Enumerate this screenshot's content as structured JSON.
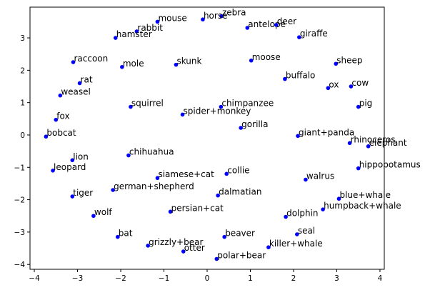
{
  "chart_data": {
    "type": "scatter",
    "title": "",
    "xlabel": "",
    "ylabel": "",
    "xlim": [
      -4.1,
      4.1
    ],
    "ylim": [
      -4.15,
      3.95
    ],
    "xticks": [
      -4,
      -3,
      -2,
      -1,
      0,
      1,
      2,
      3,
      4
    ],
    "yticks": [
      -4,
      -3,
      -2,
      -1,
      0,
      1,
      2,
      3
    ],
    "grid": false,
    "marker_color": "#0000ff",
    "points": [
      {
        "label": "zebra",
        "x": 0.33,
        "y": 3.67
      },
      {
        "label": "horse",
        "x": -0.1,
        "y": 3.57
      },
      {
        "label": "mouse",
        "x": -1.15,
        "y": 3.5
      },
      {
        "label": "rabbit",
        "x": -1.63,
        "y": 3.2
      },
      {
        "label": "hamster",
        "x": -2.12,
        "y": 3.0
      },
      {
        "label": "antelope",
        "x": 0.93,
        "y": 3.31
      },
      {
        "label": "deer",
        "x": 1.6,
        "y": 3.4
      },
      {
        "label": "giraffe",
        "x": 2.13,
        "y": 3.02
      },
      {
        "label": "raccoon",
        "x": -3.1,
        "y": 2.25
      },
      {
        "label": "mole",
        "x": -1.97,
        "y": 2.1
      },
      {
        "label": "skunk",
        "x": -0.72,
        "y": 2.17
      },
      {
        "label": "moose",
        "x": 1.02,
        "y": 2.3
      },
      {
        "label": "sheep",
        "x": 2.98,
        "y": 2.2
      },
      {
        "label": "rat",
        "x": -2.95,
        "y": 1.6
      },
      {
        "label": "buffalo",
        "x": 1.8,
        "y": 1.73
      },
      {
        "label": "ox",
        "x": 2.8,
        "y": 1.45
      },
      {
        "label": "cow",
        "x": 3.33,
        "y": 1.5
      },
      {
        "label": "weasel",
        "x": -3.4,
        "y": 1.22
      },
      {
        "label": "squirrel",
        "x": -1.77,
        "y": 0.87
      },
      {
        "label": "chimpanzee",
        "x": 0.32,
        "y": 0.87
      },
      {
        "label": "spider+monkey",
        "x": -0.57,
        "y": 0.63
      },
      {
        "label": "pig",
        "x": 3.5,
        "y": 0.87
      },
      {
        "label": "fox",
        "x": -3.5,
        "y": 0.47
      },
      {
        "label": "gorilla",
        "x": 0.78,
        "y": 0.22
      },
      {
        "label": "bobcat",
        "x": -3.73,
        "y": -0.05
      },
      {
        "label": "giant+panda",
        "x": 2.1,
        "y": -0.03
      },
      {
        "label": "rhinoceros",
        "x": 3.3,
        "y": -0.25
      },
      {
        "label": "elephant",
        "x": 3.73,
        "y": -0.35
      },
      {
        "label": "lion",
        "x": -3.12,
        "y": -0.78
      },
      {
        "label": "chihuahua",
        "x": -1.82,
        "y": -0.63
      },
      {
        "label": "hippopotamus",
        "x": 3.5,
        "y": -1.03
      },
      {
        "label": "leopard",
        "x": -3.57,
        "y": -1.1
      },
      {
        "label": "siamese+cat",
        "x": -1.15,
        "y": -1.33
      },
      {
        "label": "collie",
        "x": 0.45,
        "y": -1.2
      },
      {
        "label": "walrus",
        "x": 2.28,
        "y": -1.38
      },
      {
        "label": "german+shepherd",
        "x": -2.18,
        "y": -1.7
      },
      {
        "label": "tiger",
        "x": -3.12,
        "y": -1.9
      },
      {
        "label": "dalmatian",
        "x": 0.25,
        "y": -1.87
      },
      {
        "label": "blue+whale",
        "x": 3.05,
        "y": -1.97
      },
      {
        "label": "humpback+whale",
        "x": 2.68,
        "y": -2.3
      },
      {
        "label": "persian+cat",
        "x": -0.85,
        "y": -2.37
      },
      {
        "label": "wolf",
        "x": -2.63,
        "y": -2.5
      },
      {
        "label": "dolphin",
        "x": 1.82,
        "y": -2.53
      },
      {
        "label": "seal",
        "x": 2.08,
        "y": -3.07
      },
      {
        "label": "bat",
        "x": -2.07,
        "y": -3.15
      },
      {
        "label": "beaver",
        "x": 0.4,
        "y": -3.15
      },
      {
        "label": "grizzly+bear",
        "x": -1.37,
        "y": -3.42
      },
      {
        "label": "killer+whale",
        "x": 1.42,
        "y": -3.47
      },
      {
        "label": "otter",
        "x": -0.55,
        "y": -3.6
      },
      {
        "label": "polar+bear",
        "x": 0.22,
        "y": -3.83
      }
    ]
  }
}
